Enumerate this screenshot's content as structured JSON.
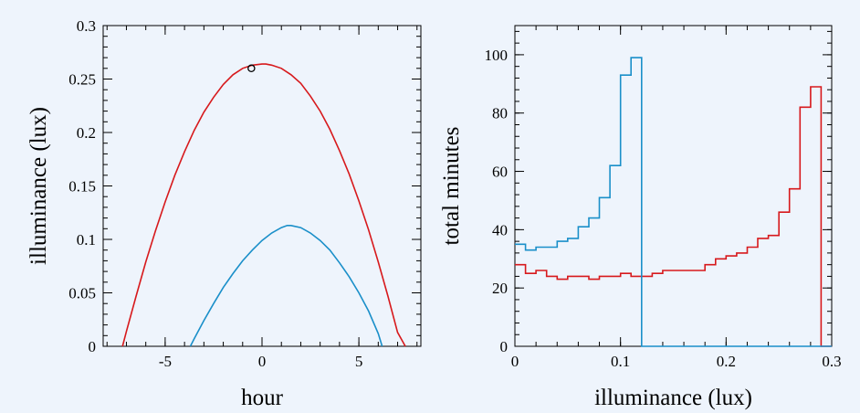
{
  "chart_data": [
    {
      "type": "line",
      "xlabel": "hour",
      "ylabel": "illuminance (lux)",
      "xlim": [
        -8.2,
        8.2
      ],
      "ylim": [
        0,
        0.3
      ],
      "xticks": [
        -5,
        0,
        5
      ],
      "xtick_labels": [
        "-5",
        "0",
        "5"
      ],
      "yticks": [
        0,
        0.05,
        0.1,
        0.15,
        0.2,
        0.25,
        0.3
      ],
      "ytick_labels": [
        "0",
        "0.05",
        "0.1",
        "0.15",
        "0.2",
        "0.25",
        "0.3"
      ],
      "grid": false,
      "series": [
        {
          "color": "#d7191c",
          "x": [
            -7.2,
            -7.0,
            -6.5,
            -6.0,
            -5.5,
            -5.0,
            -4.5,
            -4.0,
            -3.5,
            -3.0,
            -2.5,
            -2.0,
            -1.5,
            -1.0,
            -0.5,
            0.0,
            0.2,
            0.5,
            1.0,
            1.5,
            2.0,
            2.5,
            3.0,
            3.5,
            4.0,
            4.5,
            5.0,
            5.5,
            6.0,
            6.5,
            7.0,
            7.4
          ],
          "y": [
            0,
            0.014,
            0.047,
            0.079,
            0.108,
            0.135,
            0.16,
            0.182,
            0.202,
            0.219,
            0.233,
            0.245,
            0.254,
            0.26,
            0.263,
            0.264,
            0.264,
            0.263,
            0.26,
            0.254,
            0.246,
            0.234,
            0.22,
            0.203,
            0.183,
            0.161,
            0.136,
            0.109,
            0.079,
            0.047,
            0.013,
            0
          ]
        },
        {
          "color": "#1a8fc9",
          "x": [
            -3.7,
            -3.5,
            -3.0,
            -2.5,
            -2.0,
            -1.5,
            -1.0,
            -0.5,
            0.0,
            0.5,
            1.0,
            1.3,
            1.5,
            2.0,
            2.5,
            3.0,
            3.5,
            4.0,
            4.5,
            5.0,
            5.5,
            6.0,
            6.2
          ],
          "y": [
            0,
            0.007,
            0.024,
            0.04,
            0.055,
            0.068,
            0.08,
            0.09,
            0.099,
            0.106,
            0.111,
            0.113,
            0.113,
            0.111,
            0.106,
            0.099,
            0.09,
            0.078,
            0.065,
            0.05,
            0.033,
            0.012,
            0
          ]
        }
      ],
      "markers": [
        {
          "shape": "open-circle",
          "x": -0.55,
          "y": 0.26,
          "color": "#000000"
        }
      ]
    },
    {
      "type": "step",
      "xlabel": "illuminance (lux)",
      "ylabel": "total minutes",
      "xlim": [
        0,
        0.3
      ],
      "ylim": [
        0,
        110
      ],
      "xticks": [
        0,
        0.1,
        0.2,
        0.3
      ],
      "xtick_labels": [
        "0",
        "0.1",
        "0.2",
        "0.3"
      ],
      "yticks": [
        0,
        20,
        40,
        60,
        80,
        100
      ],
      "ytick_labels": [
        "0",
        "20",
        "40",
        "60",
        "80",
        "100"
      ],
      "grid": false,
      "series": [
        {
          "color": "#d7191c",
          "bin_width": 0.01,
          "bin_edges": [
            0,
            0.12
          ],
          "bin_counts_note": "",
          "bins_start": 0,
          "values": [
            28,
            25,
            26,
            24,
            23,
            24,
            24,
            23,
            24,
            24,
            25,
            24,
            24,
            25,
            26,
            26,
            26,
            26,
            28,
            30,
            31,
            32,
            34,
            37,
            38,
            46,
            54,
            82,
            89
          ]
        },
        {
          "color": "#1a8fc9",
          "bin_width": 0.01,
          "bins_start": 0,
          "values": [
            35,
            33,
            34,
            34,
            36,
            37,
            41,
            44,
            51,
            62,
            93,
            99
          ]
        }
      ]
    }
  ]
}
